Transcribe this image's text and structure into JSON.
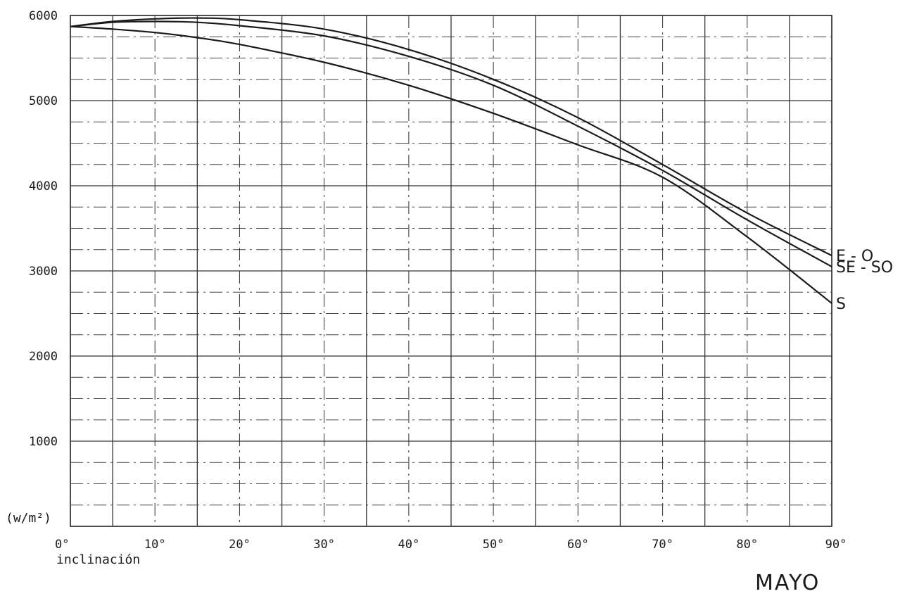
{
  "chart_data": {
    "type": "line",
    "title": "MAYO",
    "xlabel": "inclinación",
    "ylabel": "(w/m²)",
    "xlim": [
      0,
      90
    ],
    "ylim": [
      0,
      6000
    ],
    "x_ticks": [
      "0°",
      "10°",
      "20°",
      "30°",
      "40°",
      "50°",
      "60°",
      "70°",
      "80°",
      "90°"
    ],
    "y_ticks": [
      "1000",
      "2000",
      "3000",
      "4000",
      "5000",
      "6000"
    ],
    "grid": true,
    "series": [
      {
        "name": "E-O",
        "x": [
          0,
          5,
          10,
          15,
          20,
          30,
          40,
          50,
          60,
          70,
          80,
          90
        ],
        "y": [
          5870,
          5930,
          5960,
          5970,
          5950,
          5840,
          5600,
          5250,
          4800,
          4250,
          3680,
          3180
        ]
      },
      {
        "name": "SE-SO",
        "x": [
          0,
          5,
          10,
          15,
          20,
          30,
          40,
          50,
          60,
          70,
          80,
          90
        ],
        "y": [
          5870,
          5920,
          5930,
          5920,
          5880,
          5760,
          5520,
          5180,
          4700,
          4180,
          3600,
          3050
        ]
      },
      {
        "name": "S",
        "x": [
          0,
          5,
          10,
          15,
          20,
          30,
          40,
          50,
          60,
          70,
          80,
          90
        ],
        "y": [
          5870,
          5840,
          5800,
          5740,
          5660,
          5450,
          5180,
          4850,
          4480,
          4100,
          3400,
          2620
        ]
      }
    ]
  }
}
